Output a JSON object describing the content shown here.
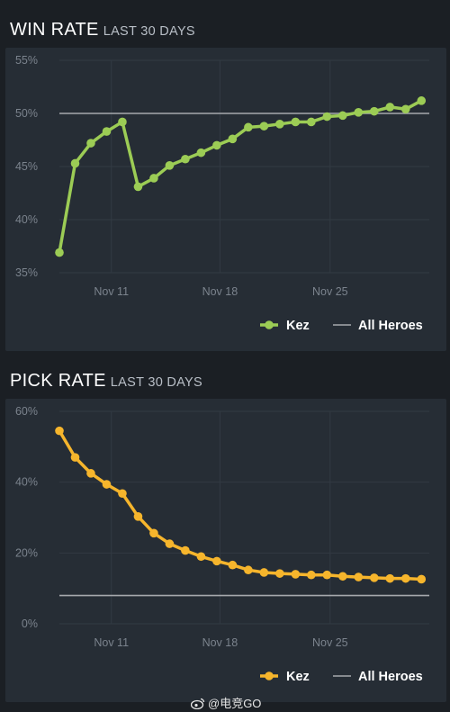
{
  "win": {
    "title": "WIN RATE",
    "subtitle": "LAST 30 DAYS"
  },
  "pick": {
    "title": "PICK RATE",
    "subtitle": "LAST 30 DAYS"
  },
  "watermark": "@电竞GO",
  "colors": {
    "win_series": "#9ccc55",
    "pick_series": "#f6b52c",
    "reference": "#a6a9ad",
    "grid": "#323a43",
    "panel": "#262d35",
    "background": "#1b1f24"
  },
  "chart_data": [
    {
      "type": "line",
      "title": "WIN RATE",
      "subtitle": "LAST 30 DAYS",
      "ylim": [
        35,
        55
      ],
      "yticks": [
        "35%",
        "40%",
        "45%",
        "50%",
        "55%"
      ],
      "ytick_values": [
        35,
        40,
        45,
        50,
        55
      ],
      "xlim": [
        0,
        23.5
      ],
      "xticks": [
        "Nov 11",
        "Nov 18",
        "Nov 25"
      ],
      "xtick_values": [
        3.3,
        10.2,
        17.2
      ],
      "legend_position": "bottom-right",
      "series": [
        {
          "name": "Kez",
          "color": "#9ccc55",
          "values": [
            36.9,
            45.3,
            47.2,
            48.3,
            49.2,
            43.1,
            43.9,
            45.1,
            45.7,
            46.3,
            47.0,
            47.6,
            48.7,
            48.8,
            49.0,
            49.2,
            49.2,
            49.7,
            49.8,
            50.1,
            50.2,
            50.6,
            50.4,
            51.2
          ]
        }
      ],
      "reference": {
        "name": "All Heroes",
        "value": 50.0,
        "color": "#a6a9ad"
      }
    },
    {
      "type": "line",
      "title": "PICK RATE",
      "subtitle": "LAST 30 DAYS",
      "ylim": [
        0,
        60
      ],
      "yticks": [
        "0%",
        "20%",
        "40%",
        "60%"
      ],
      "ytick_values": [
        0,
        20,
        40,
        60
      ],
      "xlim": [
        0,
        23.5
      ],
      "xticks": [
        "Nov 11",
        "Nov 18",
        "Nov 25"
      ],
      "xtick_values": [
        3.3,
        10.2,
        17.2
      ],
      "legend_position": "bottom-right",
      "series": [
        {
          "name": "Kez",
          "color": "#f6b52c",
          "values": [
            54.5,
            47.0,
            42.5,
            39.4,
            36.8,
            30.3,
            25.6,
            22.6,
            20.7,
            19.0,
            17.7,
            16.6,
            15.2,
            14.5,
            14.2,
            14.0,
            13.8,
            13.8,
            13.4,
            13.2,
            13.0,
            12.8,
            12.8,
            12.6
          ]
        }
      ],
      "reference": {
        "name": "All Heroes",
        "value": 8.0,
        "color": "#a6a9ad"
      }
    }
  ]
}
